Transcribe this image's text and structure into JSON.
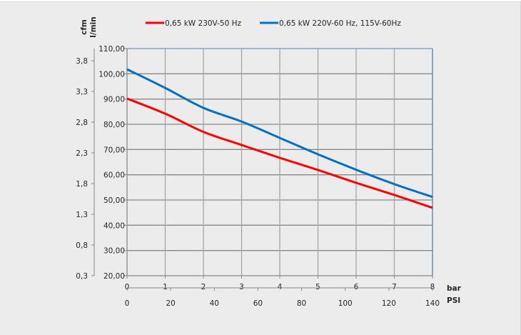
{
  "chart_data": {
    "type": "line",
    "title": "",
    "legend_position": "top",
    "grid": true,
    "x_primary": {
      "label": "bar",
      "range": [
        0,
        8
      ],
      "ticks": [
        "0",
        "1",
        "2",
        "3",
        "4",
        "5",
        "6",
        "7",
        "8"
      ]
    },
    "x_secondary": {
      "label": "PSI",
      "range": [
        0,
        140
      ],
      "ticks": [
        "0",
        "20",
        "40",
        "60",
        "80",
        "100",
        "120",
        "140"
      ]
    },
    "y_primary": {
      "label": "l/min",
      "range": [
        20,
        110
      ],
      "ticks": [
        "20,00",
        "30,00",
        "40,00",
        "50,00",
        "60,00",
        "70,00",
        "80,00",
        "90,00",
        "100,00",
        "110,00"
      ]
    },
    "y_secondary": {
      "label": "cfm",
      "ticks": [
        "0,3",
        "0,8",
        "1,3",
        "1,8",
        "2,3",
        "2,8",
        "3,3",
        "3,8"
      ]
    },
    "x": [
      0,
      1,
      2,
      3,
      4,
      5,
      6,
      7,
      8
    ],
    "series": [
      {
        "name": "0,65 kW 230V-50 Hz",
        "color": "#ff0000",
        "values": [
          90.2,
          84.2,
          77.0,
          71.8,
          66.7,
          61.9,
          56.8,
          52.0,
          46.9
        ]
      },
      {
        "name": "0,65 kW 220V-60 Hz, 115V-60Hz",
        "color": "#0070c0",
        "values": [
          101.8,
          94.4,
          86.5,
          81.1,
          74.6,
          68.1,
          62.0,
          56.3,
          51.2
        ]
      }
    ]
  }
}
